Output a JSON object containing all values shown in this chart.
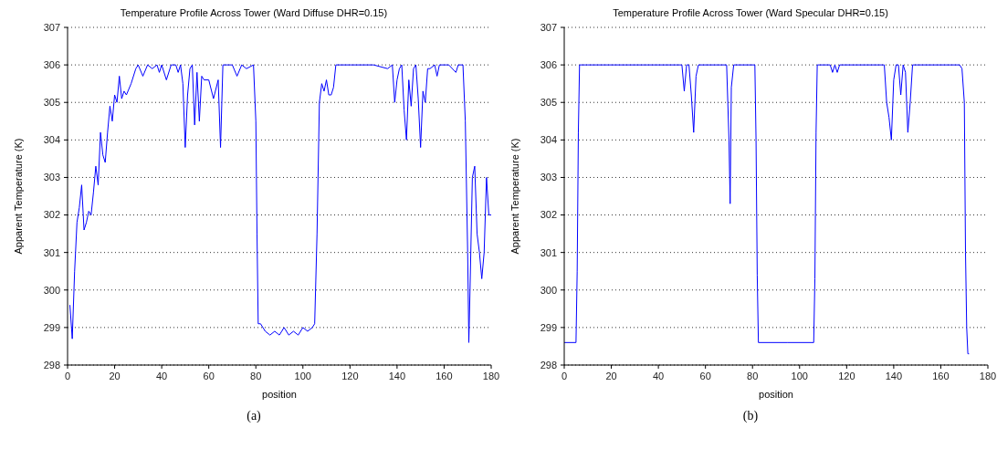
{
  "chart_data": [
    {
      "type": "line",
      "title": "Temperature Profile Across Tower (Ward Diffuse DHR=0.15)",
      "xlabel": "position",
      "ylabel": "Apparent Temperature (K)",
      "annotations": [
        "(a)"
      ],
      "xlim": [
        0,
        180
      ],
      "xticks": [
        0,
        20,
        40,
        60,
        80,
        100,
        120,
        140,
        160,
        180
      ],
      "ylim": [
        298,
        307
      ],
      "yticks": [
        298,
        299,
        300,
        301,
        302,
        303,
        304,
        305,
        306,
        307
      ],
      "grid": "y",
      "legend": false,
      "marker": "none",
      "line_style": "solid",
      "x": [
        1,
        2,
        3,
        4,
        5,
        6,
        7,
        8,
        9,
        10,
        11,
        12,
        13,
        14,
        15,
        16,
        17,
        18,
        19,
        20,
        21,
        22,
        23,
        24,
        25,
        27,
        29,
        30,
        32,
        34,
        36,
        38,
        39,
        40,
        42,
        44,
        46,
        47,
        48,
        49,
        50,
        51,
        52,
        53,
        54,
        55,
        56,
        57,
        58,
        60,
        62,
        64,
        65,
        66,
        70,
        72,
        74,
        76,
        79,
        80,
        80.5,
        81,
        82,
        84,
        86,
        88,
        90,
        92,
        94,
        96,
        98,
        100,
        102,
        104,
        105,
        106,
        107,
        108,
        109,
        110,
        111,
        112,
        113,
        114,
        120,
        130,
        136,
        138,
        139,
        140,
        141,
        142,
        143,
        144,
        145,
        146,
        147,
        148,
        149,
        150,
        151,
        152,
        153,
        154,
        156,
        157,
        158,
        162,
        165,
        166,
        168,
        169,
        170,
        170.5,
        171,
        172,
        173,
        174,
        175,
        176,
        177,
        178,
        179,
        180
      ],
      "series": [
        {
          "color": "#0000ff",
          "values": [
            299.6,
            298.7,
            300.5,
            301.8,
            302.2,
            302.8,
            301.6,
            301.8,
            302.1,
            302,
            302.6,
            303.3,
            302.8,
            304.2,
            303.6,
            303.4,
            304.2,
            304.9,
            304.5,
            305.2,
            305,
            305.7,
            305.1,
            305.3,
            305.2,
            305.5,
            305.9,
            306,
            305.7,
            306,
            305.9,
            306,
            305.8,
            306,
            305.6,
            306,
            306,
            305.8,
            306,
            305.5,
            303.8,
            305.2,
            305.9,
            306,
            304.4,
            305.8,
            304.5,
            305.7,
            305.6,
            305.6,
            305.1,
            305.6,
            303.8,
            306,
            306,
            305.7,
            306,
            305.9,
            306,
            304.5,
            301.5,
            299.1,
            299.1,
            298.9,
            298.8,
            298.9,
            298.8,
            299,
            298.8,
            298.9,
            298.8,
            299,
            298.9,
            299,
            299.1,
            301.5,
            305,
            305.5,
            305.3,
            305.6,
            305.2,
            305.2,
            305.4,
            306,
            306,
            306,
            305.9,
            306,
            305,
            305.6,
            305.9,
            306,
            304.8,
            304,
            305.6,
            304.9,
            305.9,
            306,
            305.1,
            303.8,
            305.3,
            305,
            305.9,
            305.9,
            306,
            305.7,
            306,
            306,
            305.8,
            306,
            306,
            304.5,
            301,
            298.6,
            300,
            303,
            303.3,
            301.5,
            301,
            300.3,
            301,
            303,
            302,
            302
          ]
        }
      ]
    },
    {
      "type": "line",
      "title": "Temperature Profile Across Tower (Ward Specular DHR=0.15)",
      "xlabel": "position",
      "ylabel": "Apparent Temperature (K)",
      "annotations": [
        "(b)"
      ],
      "xlim": [
        0,
        180
      ],
      "xticks": [
        0,
        20,
        40,
        60,
        80,
        100,
        120,
        140,
        160,
        180
      ],
      "ylim": [
        298,
        307
      ],
      "yticks": [
        298,
        299,
        300,
        301,
        302,
        303,
        304,
        305,
        306,
        307
      ],
      "grid": "y",
      "legend": false,
      "marker": "none",
      "line_style": "solid",
      "x": [
        0,
        5,
        5.5,
        6,
        6.5,
        10,
        50,
        51,
        52,
        53,
        54,
        55,
        56,
        57,
        69,
        70,
        70.5,
        71,
        72,
        81,
        81.5,
        82,
        82.5,
        95,
        106,
        106.5,
        107,
        107.5,
        113,
        114,
        115,
        116,
        117,
        136,
        137,
        138,
        139,
        140,
        141,
        142,
        143,
        144,
        145,
        146,
        147,
        148,
        168,
        169,
        170,
        170.5,
        171,
        171.5,
        172
      ],
      "series": [
        {
          "color": "#0000ff",
          "values": [
            298.6,
            298.6,
            300.5,
            304.2,
            306,
            306,
            306,
            305.3,
            306,
            306,
            305.2,
            304.2,
            305.7,
            306,
            306,
            304,
            302.3,
            305.4,
            306,
            306,
            304,
            300.4,
            298.6,
            298.6,
            298.6,
            300.3,
            304.2,
            306,
            306,
            305.8,
            306,
            305.8,
            306,
            306,
            305,
            304.6,
            304,
            305.6,
            306,
            306,
            305.2,
            306,
            305.8,
            304.2,
            305,
            306,
            306,
            305.9,
            305,
            301,
            299,
            298.3,
            298.3
          ]
        }
      ]
    }
  ]
}
